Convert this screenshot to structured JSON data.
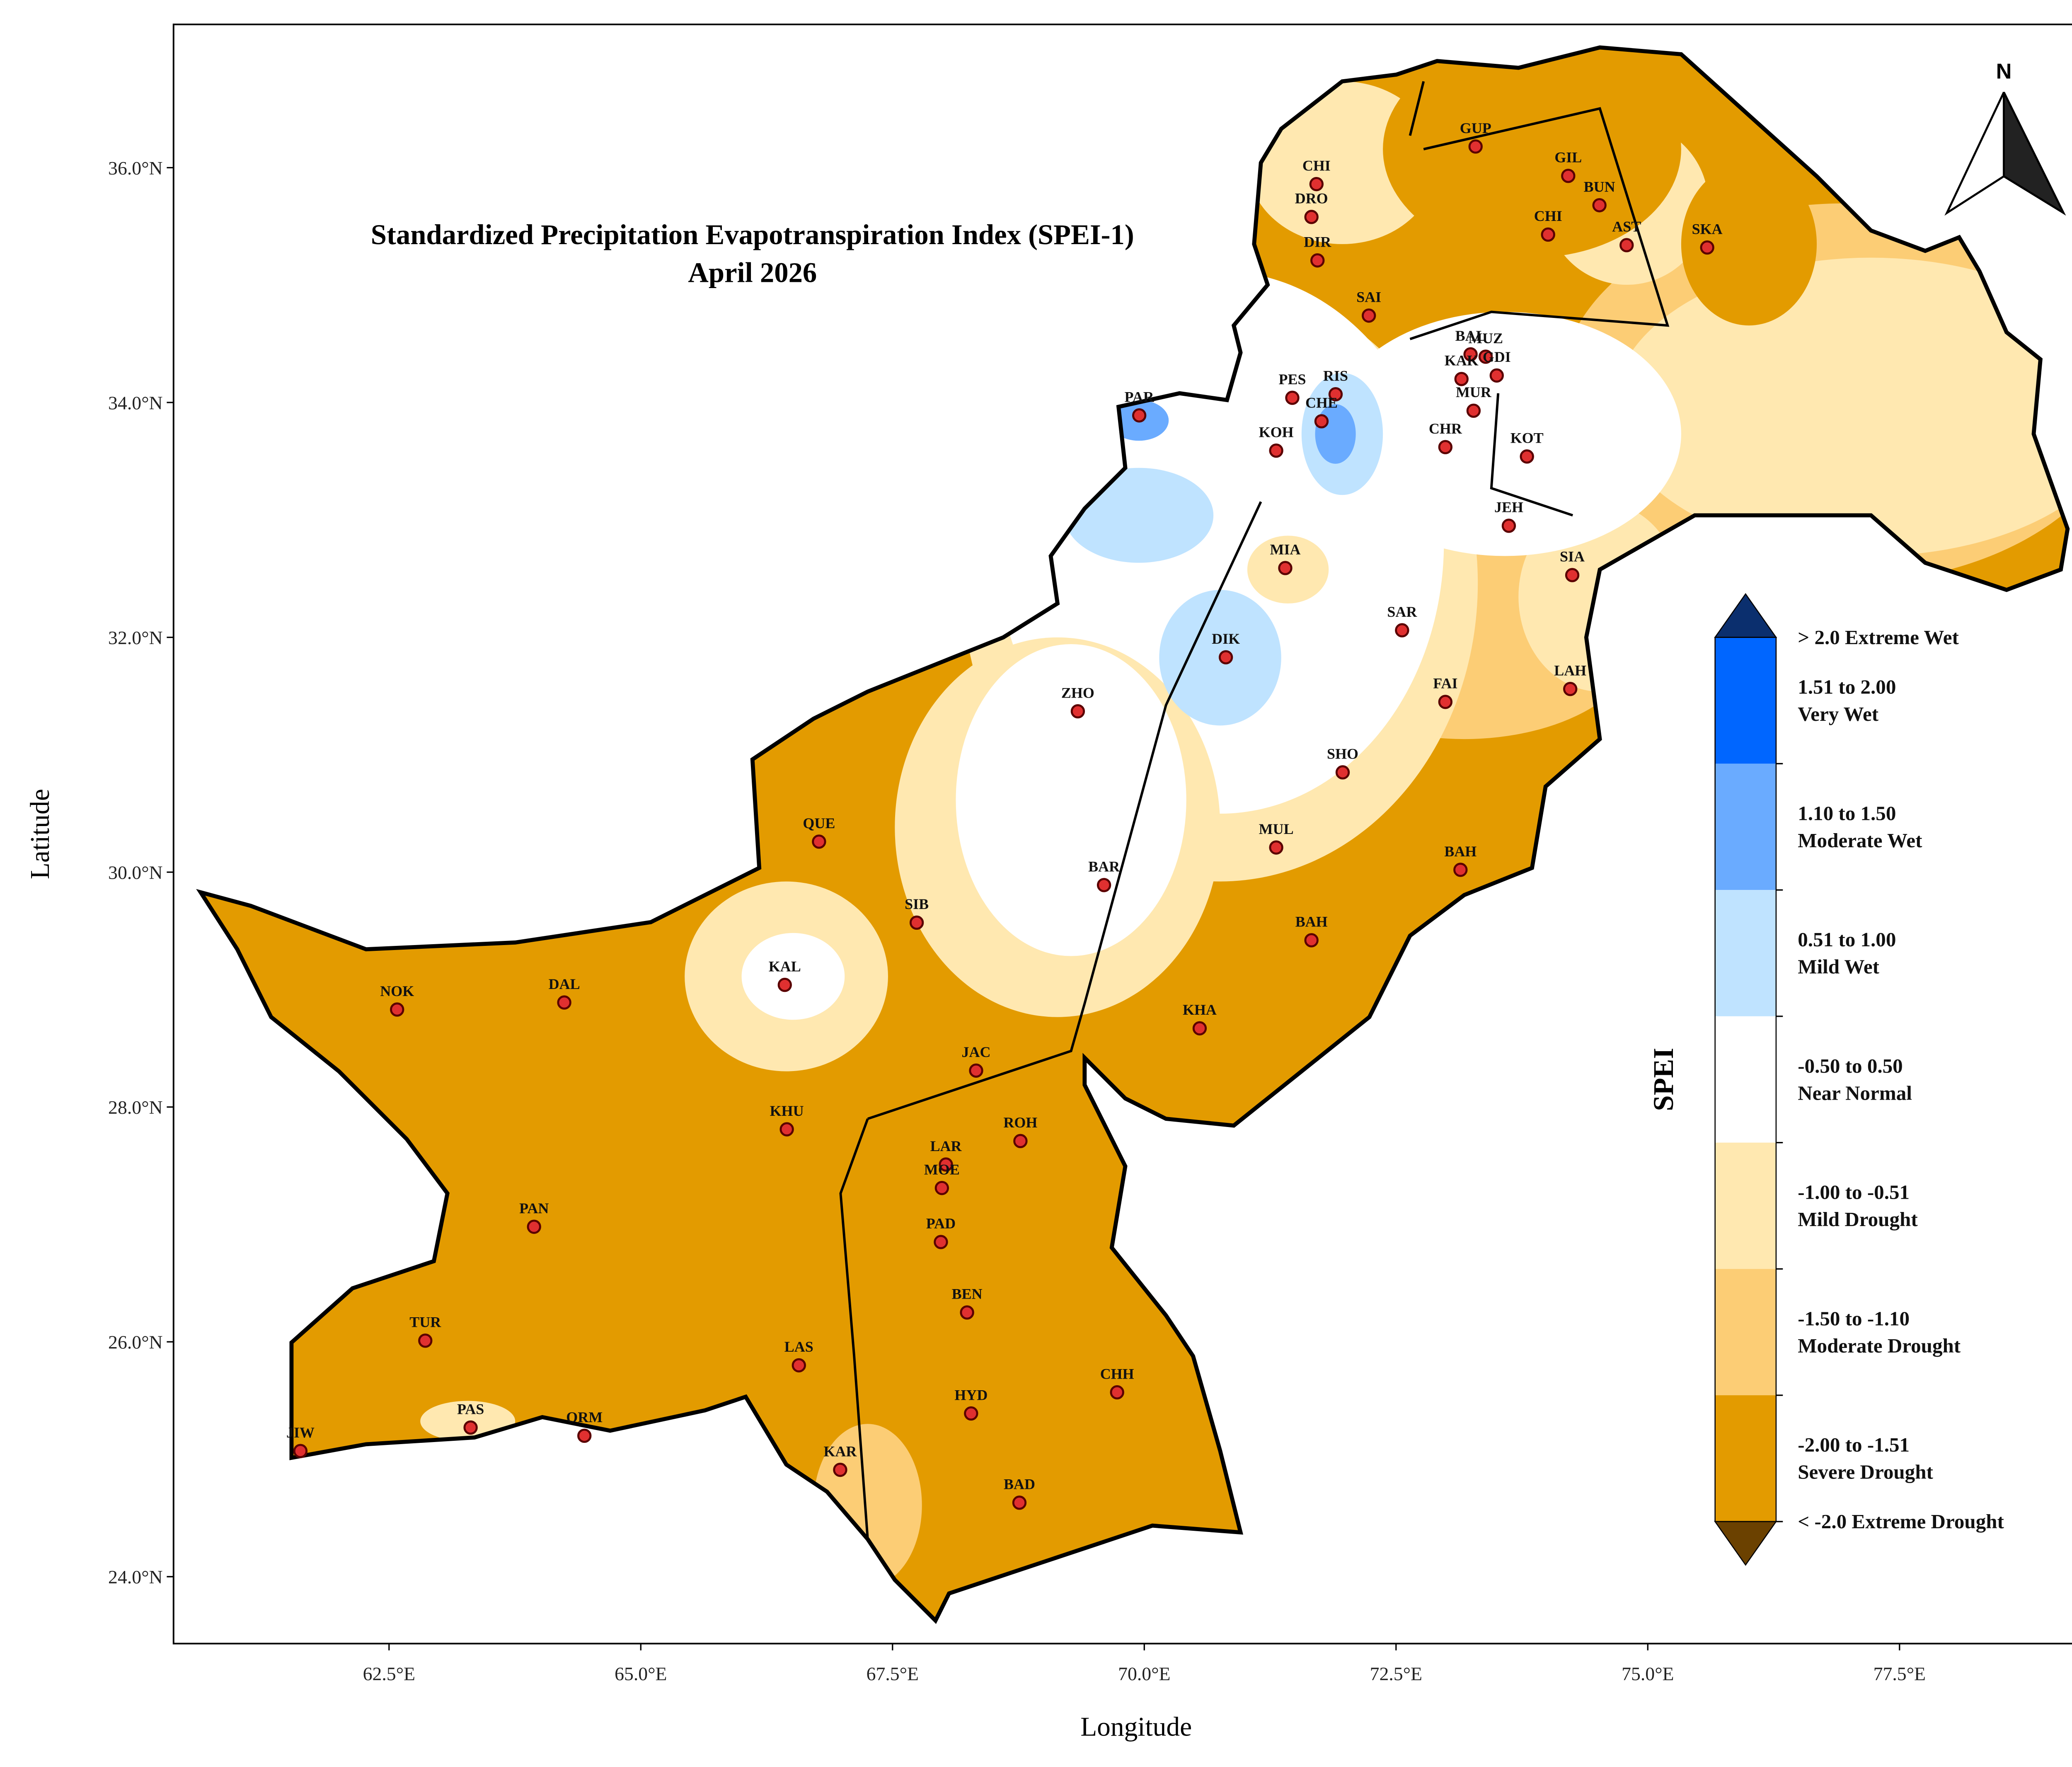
{
  "title": "Standardized Precipitation Evapotranspiration Index (SPEI-1)",
  "subtitle": "April 2026",
  "x_label": "Longitude",
  "y_label": "Latitude",
  "north_label": "N",
  "xlim": [
    60.36,
    79.29
  ],
  "ylim": [
    23.43,
    37.22
  ],
  "xticks": [
    {
      "value": 62.5,
      "label": "62.5°E"
    },
    {
      "value": 65,
      "label": "65.0°E"
    },
    {
      "value": 67.5,
      "label": "67.5°E"
    },
    {
      "value": 70,
      "label": "70.0°E"
    },
    {
      "value": 72.5,
      "label": "72.5°E"
    },
    {
      "value": 75,
      "label": "75.0°E"
    },
    {
      "value": 77.5,
      "label": "77.5°E"
    }
  ],
  "yticks": [
    {
      "value": 24,
      "label": "24.0°N"
    },
    {
      "value": 26,
      "label": "26.0°N"
    },
    {
      "value": 28,
      "label": "28.0°N"
    },
    {
      "value": 30,
      "label": "30.0°N"
    },
    {
      "value": 32,
      "label": "32.0°N"
    },
    {
      "value": 34,
      "label": "34.0°N"
    },
    {
      "value": 36,
      "label": "36.0°N"
    }
  ],
  "legend": {
    "title": "SPEI",
    "items": [
      {
        "lines": [
          "> 2.0 Extreme Wet"
        ],
        "color": "#0b2f6e"
      },
      {
        "lines": [
          "1.51 to 2.00",
          "Very Wet"
        ],
        "color": "#0066ff"
      },
      {
        "lines": [
          "1.10 to 1.50",
          "Moderate Wet"
        ],
        "color": "#6aabff"
      },
      {
        "lines": [
          "0.51 to 1.00",
          "Mild Wet"
        ],
        "color": "#bfe3ff"
      },
      {
        "lines": [
          "-0.50 to 0.50",
          "Near Normal"
        ],
        "color": "#ffffff"
      },
      {
        "lines": [
          "-1.00 to -0.51",
          "Mild Drought"
        ],
        "color": "#ffe8b0"
      },
      {
        "lines": [
          "-1.50 to -1.10",
          "Moderate Drought"
        ],
        "color": "#fccd75"
      },
      {
        "lines": [
          "-2.00 to -1.51",
          "Severe Drought"
        ],
        "color": "#e39b00"
      },
      {
        "lines": [
          "< -2.0 Extreme Drought"
        ],
        "color": "#6b4100"
      }
    ]
  },
  "stations": [
    {
      "name": "GUP",
      "lon": 73.29,
      "lat": 36.18
    },
    {
      "name": "GIL",
      "lon": 74.21,
      "lat": 35.93
    },
    {
      "name": "BUN",
      "lon": 74.52,
      "lat": 35.68
    },
    {
      "name": "CHI",
      "lon": 71.71,
      "lat": 35.86
    },
    {
      "name": "DRO",
      "lon": 71.66,
      "lat": 35.58
    },
    {
      "name": "DIR",
      "lon": 71.72,
      "lat": 35.21
    },
    {
      "name": "CHI",
      "lon": 74.01,
      "lat": 35.43
    },
    {
      "name": "AST",
      "lon": 74.79,
      "lat": 35.34
    },
    {
      "name": "SKA",
      "lon": 75.59,
      "lat": 35.32
    },
    {
      "name": "SAI",
      "lon": 72.23,
      "lat": 34.74
    },
    {
      "name": "BAL",
      "lon": 73.24,
      "lat": 34.41
    },
    {
      "name": "MUZ",
      "lon": 73.39,
      "lat": 34.39
    },
    {
      "name": "KAK",
      "lon": 73.15,
      "lat": 34.2
    },
    {
      "name": "GDI",
      "lon": 73.5,
      "lat": 34.23
    },
    {
      "name": "PES",
      "lon": 71.47,
      "lat": 34.04
    },
    {
      "name": "RIS",
      "lon": 71.9,
      "lat": 34.07
    },
    {
      "name": "CHE",
      "lon": 71.76,
      "lat": 33.84
    },
    {
      "name": "MUR",
      "lon": 73.27,
      "lat": 33.93
    },
    {
      "name": "CHR",
      "lon": 72.99,
      "lat": 33.62
    },
    {
      "name": "KOT",
      "lon": 73.8,
      "lat": 33.54
    },
    {
      "name": "PAR",
      "lon": 69.95,
      "lat": 33.89
    },
    {
      "name": "KOH",
      "lon": 71.31,
      "lat": 33.59
    },
    {
      "name": "JEH",
      "lon": 73.62,
      "lat": 32.95
    },
    {
      "name": "MIA",
      "lon": 71.4,
      "lat": 32.59
    },
    {
      "name": "SIA",
      "lon": 74.25,
      "lat": 32.53
    },
    {
      "name": "SAR",
      "lon": 72.56,
      "lat": 32.06
    },
    {
      "name": "DIK",
      "lon": 70.81,
      "lat": 31.83
    },
    {
      "name": "ZHO",
      "lon": 69.34,
      "lat": 31.37
    },
    {
      "name": "FAI",
      "lon": 72.99,
      "lat": 31.45
    },
    {
      "name": "LAH",
      "lon": 74.23,
      "lat": 31.56
    },
    {
      "name": "SHO",
      "lon": 71.97,
      "lat": 30.85
    },
    {
      "name": "QUE",
      "lon": 66.77,
      "lat": 30.26
    },
    {
      "name": "MUL",
      "lon": 71.31,
      "lat": 30.21
    },
    {
      "name": "BAH",
      "lon": 73.14,
      "lat": 30.02
    },
    {
      "name": "BAR",
      "lon": 69.6,
      "lat": 29.89
    },
    {
      "name": "SIB",
      "lon": 67.74,
      "lat": 29.57
    },
    {
      "name": "KAL",
      "lon": 66.43,
      "lat": 29.04
    },
    {
      "name": "BAH",
      "lon": 71.66,
      "lat": 29.42
    },
    {
      "name": "NOK",
      "lon": 62.58,
      "lat": 28.83
    },
    {
      "name": "DAL",
      "lon": 64.24,
      "lat": 28.89
    },
    {
      "name": "KHA",
      "lon": 70.55,
      "lat": 28.67
    },
    {
      "name": "JAC",
      "lon": 68.33,
      "lat": 28.31
    },
    {
      "name": "KHU",
      "lon": 66.45,
      "lat": 27.81
    },
    {
      "name": "ROH",
      "lon": 68.77,
      "lat": 27.71
    },
    {
      "name": "LAR",
      "lon": 68.03,
      "lat": 27.51
    },
    {
      "name": "MOE",
      "lon": 67.99,
      "lat": 27.31
    },
    {
      "name": "PAN",
      "lon": 63.94,
      "lat": 26.98
    },
    {
      "name": "PAD",
      "lon": 67.98,
      "lat": 26.85
    },
    {
      "name": "BEN",
      "lon": 68.24,
      "lat": 26.25
    },
    {
      "name": "TUR",
      "lon": 62.86,
      "lat": 26.01
    },
    {
      "name": "LAS",
      "lon": 66.57,
      "lat": 25.8
    },
    {
      "name": "CHH",
      "lon": 69.73,
      "lat": 25.57
    },
    {
      "name": "HYD",
      "lon": 68.28,
      "lat": 25.39
    },
    {
      "name": "PAS",
      "lon": 63.31,
      "lat": 25.27
    },
    {
      "name": "ORM",
      "lon": 64.44,
      "lat": 25.2
    },
    {
      "name": "JIW",
      "lon": 61.62,
      "lat": 25.07
    },
    {
      "name": "KAR",
      "lon": 66.98,
      "lat": 24.91
    },
    {
      "name": "BAD",
      "lon": 68.76,
      "lat": 24.63
    }
  ]
}
